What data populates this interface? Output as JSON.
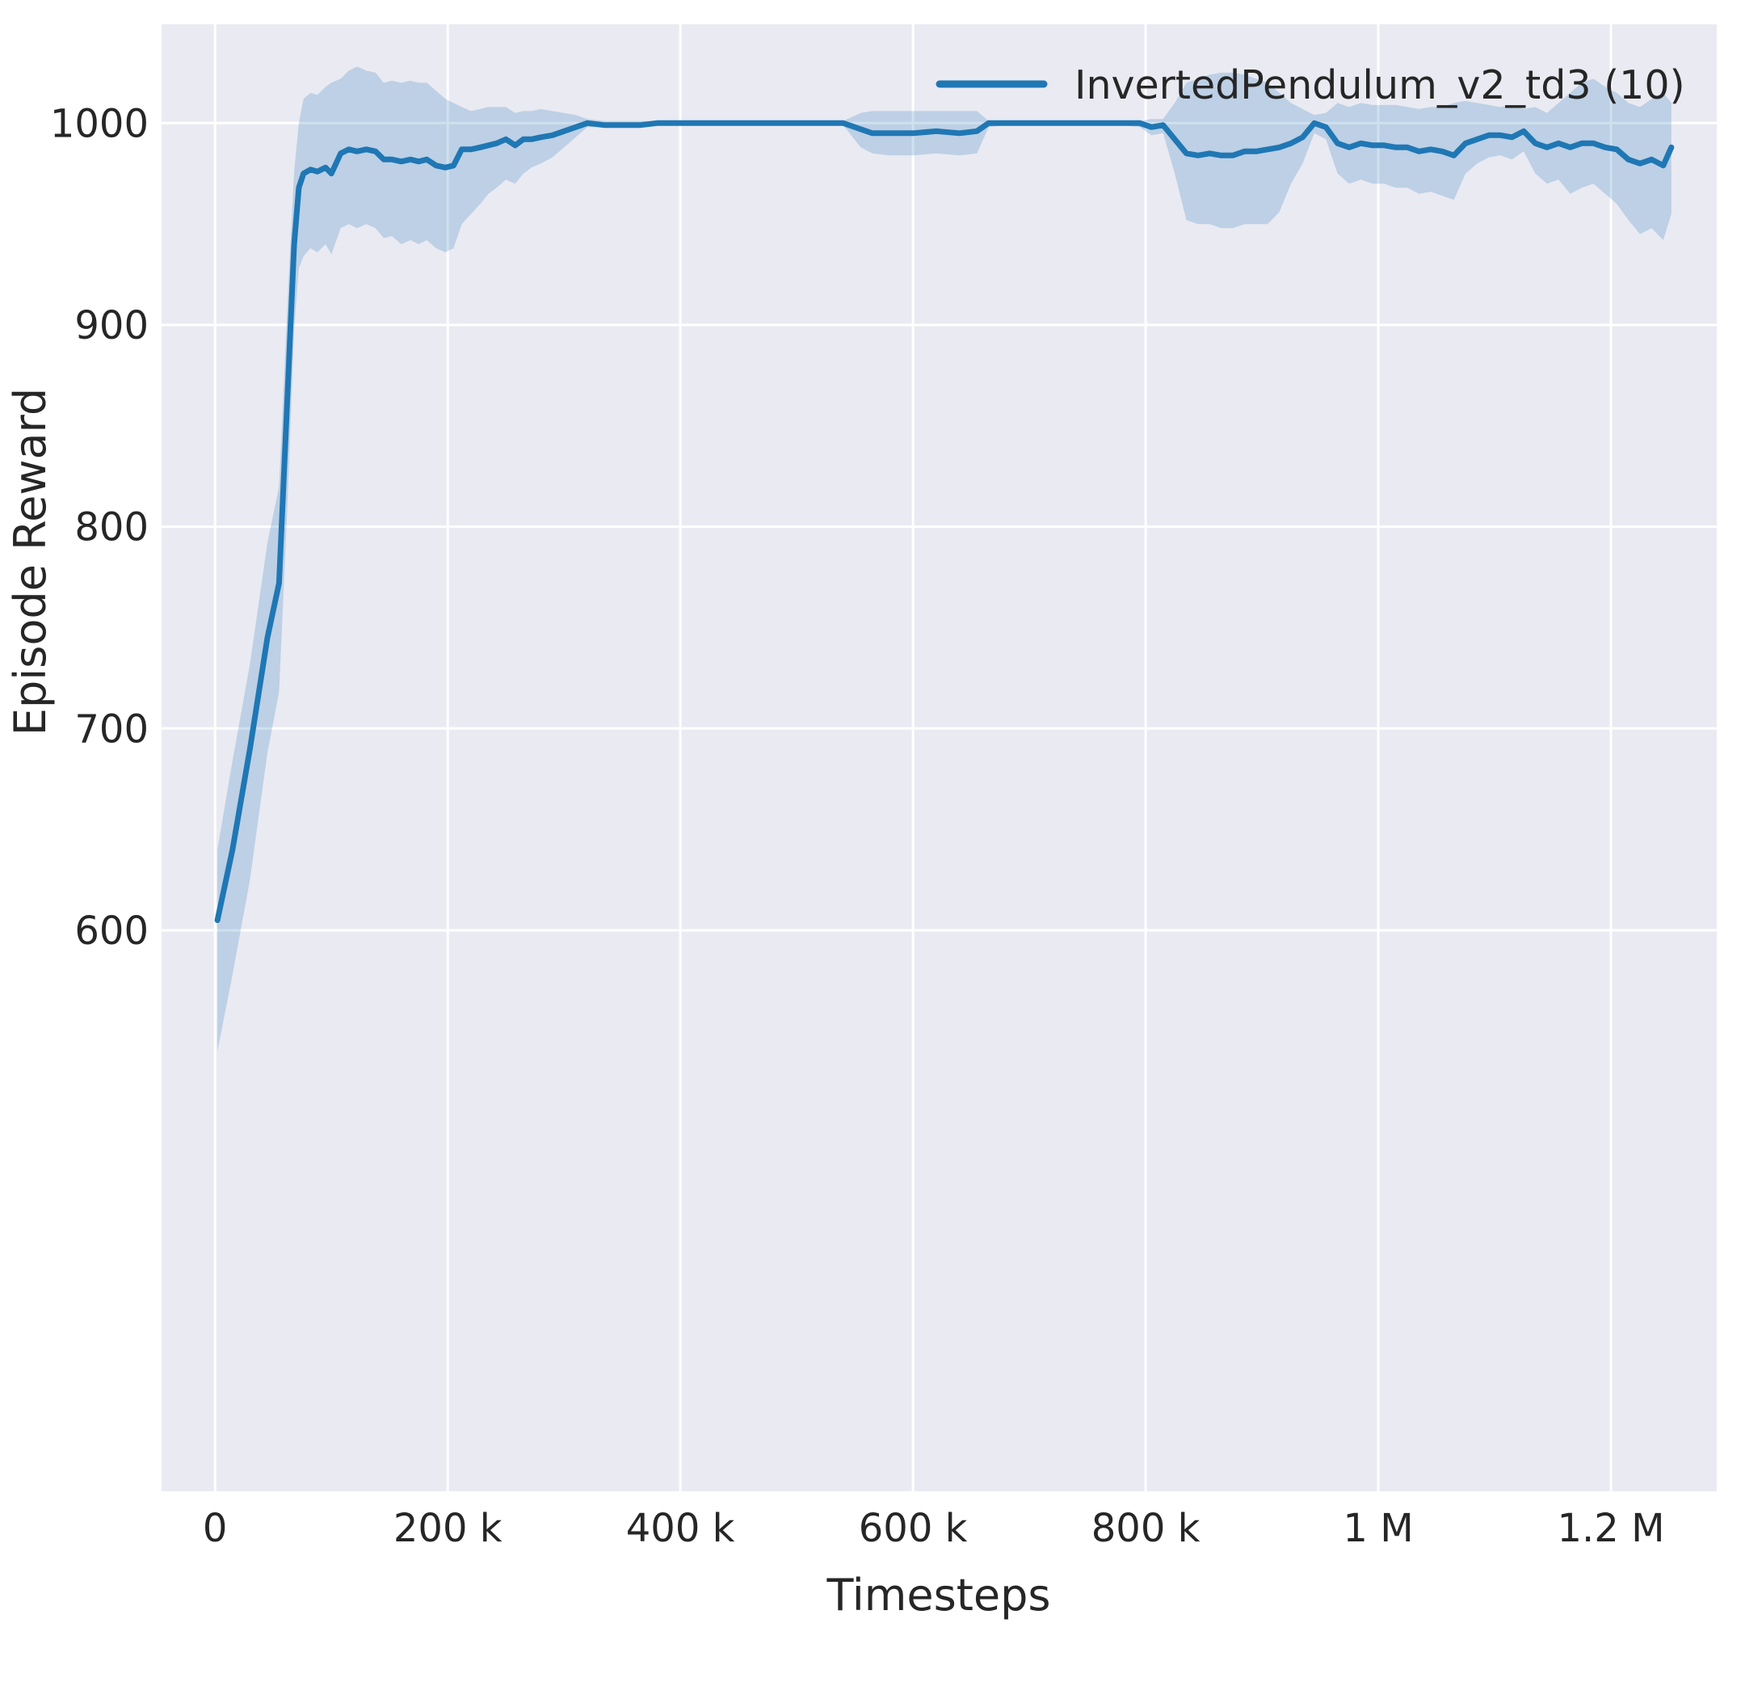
{
  "figure": {
    "background": "#ffffff",
    "plot_background": "#eaeaf2",
    "grid_color": "#ffffff",
    "text_color": "#262626"
  },
  "chart_data": {
    "type": "line",
    "title": "",
    "xlabel": "Timesteps",
    "ylabel": "Episode Reward",
    "grid": true,
    "legend_position": "upper right",
    "xlim": [
      -46000,
      1291000
    ],
    "ylim": [
      322,
      1049
    ],
    "xticks": {
      "values": [
        0,
        200000,
        400000,
        600000,
        800000,
        1000000,
        1200000
      ],
      "labels": [
        "0",
        "200 k",
        "400 k",
        "600 k",
        "800 k",
        "1 M",
        "1.2 M"
      ]
    },
    "yticks": {
      "values": [
        600,
        700,
        800,
        900,
        1000
      ],
      "labels": [
        "600",
        "700",
        "800",
        "900",
        "1000"
      ]
    },
    "series": [
      {
        "name": "InvertedPendulum_v2_td3 (10)",
        "color": "#1f77b4",
        "band_opacity": 0.22,
        "line_width": 7,
        "x": [
          2000,
          15000,
          30000,
          45000,
          55000,
          62000,
          68000,
          72000,
          76000,
          82000,
          88000,
          95000,
          100000,
          108000,
          115000,
          122000,
          130000,
          138000,
          145000,
          152000,
          160000,
          168000,
          175000,
          182000,
          190000,
          198000,
          205000,
          212000,
          220000,
          228000,
          235000,
          242000,
          250000,
          258000,
          265000,
          272000,
          280000,
          290000,
          300000,
          310000,
          320000,
          335000,
          350000,
          365000,
          380000,
          400000,
          420000,
          440000,
          460000,
          480000,
          500000,
          520000,
          540000,
          555000,
          565000,
          580000,
          600000,
          620000,
          640000,
          655000,
          665000,
          680000,
          700000,
          720000,
          740000,
          760000,
          780000,
          795000,
          805000,
          815000,
          825000,
          835000,
          845000,
          855000,
          865000,
          875000,
          885000,
          895000,
          905000,
          915000,
          925000,
          935000,
          945000,
          955000,
          965000,
          975000,
          985000,
          995000,
          1005000,
          1015000,
          1025000,
          1035000,
          1045000,
          1055000,
          1065000,
          1075000,
          1085000,
          1095000,
          1105000,
          1115000,
          1125000,
          1135000,
          1145000,
          1155000,
          1165000,
          1175000,
          1185000,
          1195000,
          1205000,
          1215000,
          1225000,
          1235000,
          1245000,
          1252000
        ],
        "mean": [
          605,
          640,
          690,
          745,
          772,
          862,
          940,
          968,
          975,
          977,
          976,
          978,
          975,
          985,
          987,
          986,
          987,
          986,
          982,
          982,
          981,
          982,
          981,
          982,
          979,
          978,
          979,
          987,
          987,
          988,
          989,
          990,
          992,
          989,
          992,
          992,
          993,
          994,
          996,
          998,
          1000,
          999,
          999,
          999,
          1000,
          1000,
          1000,
          1000,
          1000,
          1000,
          1000,
          1000,
          1000,
          997,
          995,
          995,
          995,
          996,
          995,
          996,
          1000,
          1000,
          1000,
          1000,
          1000,
          1000,
          1000,
          1000,
          998,
          999,
          992,
          985,
          984,
          985,
          984,
          984,
          986,
          986,
          987,
          988,
          990,
          993,
          1000,
          998,
          990,
          988,
          990,
          989,
          989,
          988,
          988,
          986,
          987,
          986,
          984,
          990,
          992,
          994,
          994,
          993,
          996,
          990,
          988,
          990,
          988,
          990,
          990,
          988,
          987,
          982,
          980,
          982,
          979,
          988
        ],
        "low": [
          540,
          578,
          625,
          688,
          718,
          808,
          898,
          928,
          934,
          938,
          936,
          940,
          935,
          948,
          950,
          948,
          950,
          948,
          943,
          944,
          940,
          942,
          940,
          942,
          938,
          936,
          938,
          950,
          955,
          960,
          965,
          968,
          972,
          970,
          975,
          978,
          980,
          983,
          988,
          993,
          998,
          998,
          998,
          998,
          999,
          999,
          999,
          999,
          999,
          999,
          999,
          999,
          999,
          988,
          985,
          984,
          984,
          985,
          984,
          985,
          998,
          999,
          999,
          999,
          999,
          999,
          999,
          998,
          994,
          995,
          975,
          952,
          950,
          950,
          948,
          948,
          950,
          950,
          950,
          956,
          970,
          980,
          995,
          992,
          975,
          970,
          972,
          970,
          970,
          968,
          968,
          965,
          966,
          964,
          962,
          975,
          980,
          983,
          984,
          982,
          986,
          975,
          970,
          972,
          965,
          968,
          970,
          965,
          960,
          952,
          945,
          948,
          942,
          955
        ],
        "high": [
          640,
          684,
          732,
          792,
          820,
          908,
          976,
          1000,
          1012,
          1015,
          1014,
          1018,
          1020,
          1022,
          1026,
          1028,
          1026,
          1025,
          1020,
          1021,
          1020,
          1021,
          1020,
          1020,
          1016,
          1012,
          1010,
          1008,
          1006,
          1007,
          1008,
          1008,
          1008,
          1005,
          1006,
          1006,
          1007,
          1006,
          1005,
          1004,
          1002,
          1001,
          1001,
          1001,
          1001,
          1001,
          1001,
          1001,
          1001,
          1001,
          1001,
          1001,
          1001,
          1005,
          1006,
          1006,
          1006,
          1006,
          1006,
          1006,
          1001,
          1001,
          1001,
          1001,
          1001,
          1001,
          1001,
          1001,
          1002,
          1002,
          1010,
          1020,
          1022,
          1024,
          1025,
          1025,
          1024,
          1022,
          1020,
          1015,
          1010,
          1007,
          1004,
          1005,
          1010,
          1008,
          1010,
          1009,
          1009,
          1009,
          1008,
          1007,
          1008,
          1008,
          1010,
          1011,
          1010,
          1009,
          1008,
          1009,
          1007,
          1008,
          1005,
          1010,
          1015,
          1020,
          1022,
          1018,
          1015,
          1010,
          1008,
          1012,
          1015,
          1010
        ]
      }
    ]
  }
}
